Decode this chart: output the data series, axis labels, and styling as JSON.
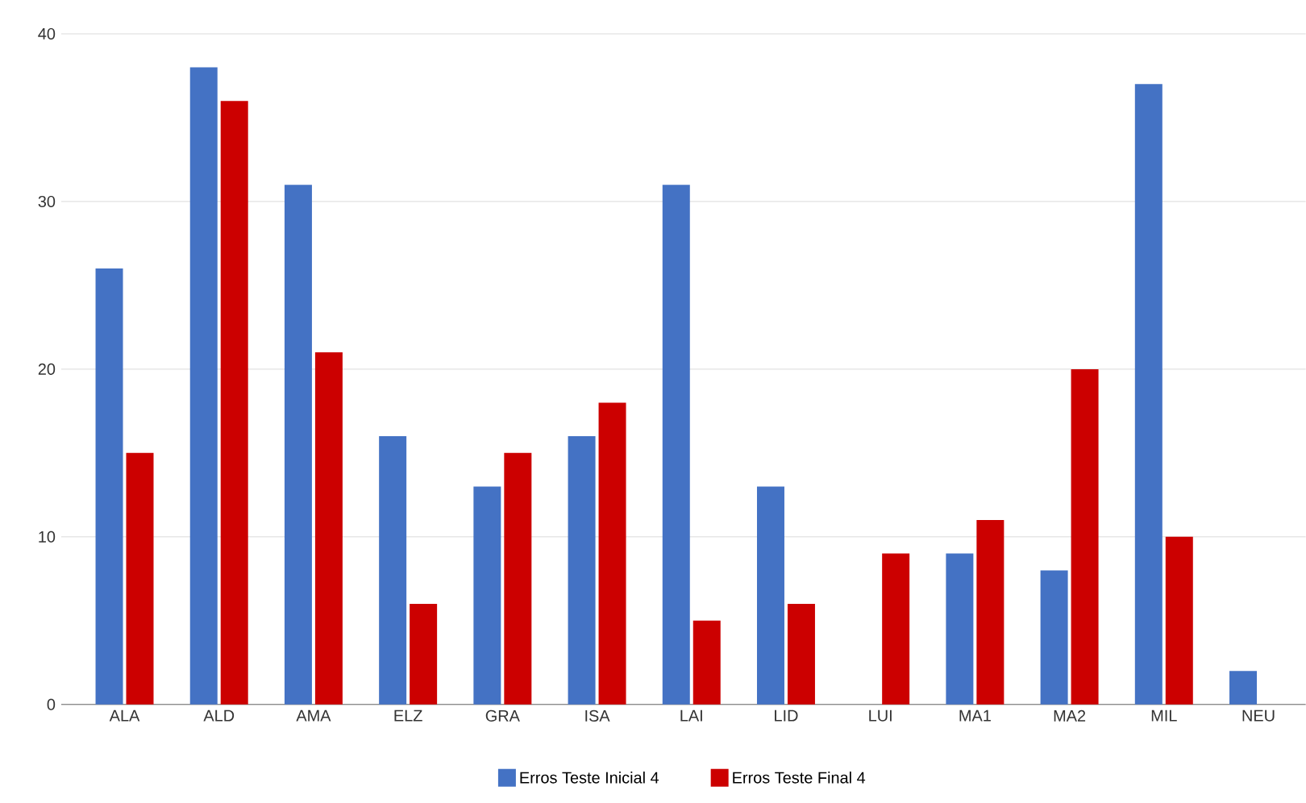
{
  "chart_data": {
    "type": "bar",
    "categories": [
      "ALA",
      "ALD",
      "AMA",
      "ELZ",
      "GRA",
      "ISA",
      "LAI",
      "LID",
      "LUI",
      "MA1",
      "MA2",
      "MIL",
      "NEU"
    ],
    "series": [
      {
        "name": "Erros Teste Inicial 4",
        "color": "#4472c4",
        "values": [
          26,
          38,
          31,
          16,
          13,
          16,
          31,
          13,
          null,
          9,
          8,
          37,
          2
        ]
      },
      {
        "name": "Erros Teste Final 4",
        "color": "#cc0000",
        "values": [
          15,
          36,
          21,
          6,
          15,
          18,
          5,
          6,
          9,
          11,
          20,
          10,
          null
        ]
      }
    ],
    "ylim": [
      0,
      40
    ],
    "yticks": [
      0,
      10,
      20,
      30,
      40
    ],
    "grid": "y",
    "legend": "bottom"
  }
}
